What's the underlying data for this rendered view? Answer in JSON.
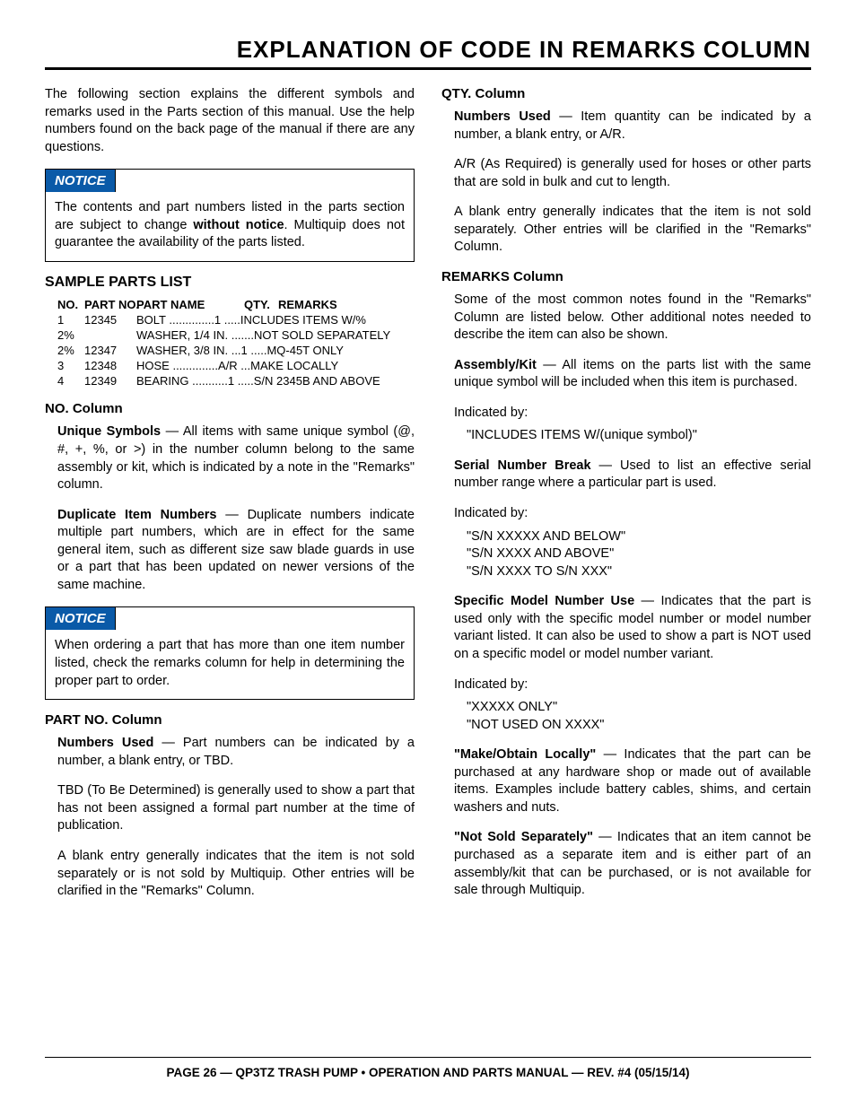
{
  "title": "EXPLANATION OF CODE IN REMARKS COLUMN",
  "intro": "The following section explains the different symbols and remarks used in the Parts section of this manual. Use the help numbers found on the back page of the manual if there are any questions.",
  "notice1": {
    "label": "NOTICE",
    "body_pre": "The contents and part numbers listed in the parts section are subject to change ",
    "body_bold": "without notice",
    "body_post": ". Multiquip does not guarantee the availability of the parts listed."
  },
  "sample_heading": "SAMPLE PARTS LIST",
  "table": {
    "headers": {
      "no": "NO.",
      "part": "PART NO.",
      "name": "PART NAME",
      "qty": "QTY.",
      "rem": "REMARKS"
    },
    "rows": [
      {
        "no": "1",
        "part": "12345",
        "name": "BOLT",
        "qty": "1",
        "rem": "INCLUDES ITEMS W/%"
      },
      {
        "no": "2%",
        "part": "",
        "name": "WASHER, 1/4 IN.",
        "qty": "",
        "rem": "NOT SOLD SEPARATELY"
      },
      {
        "no": "2%",
        "part": "12347",
        "name": "WASHER, 3/8 IN.",
        "qty": "1",
        "rem": "MQ-45T ONLY"
      },
      {
        "no": "3",
        "part": "12348",
        "name": "HOSE",
        "qty": "A/R",
        "rem": "MAKE LOCALLY"
      },
      {
        "no": "4",
        "part": "12349",
        "name": "BEARING",
        "qty": "1",
        "rem": "S/N 2345B AND ABOVE"
      }
    ]
  },
  "no_col": {
    "heading": "NO. Column",
    "p1_lead": "Unique Symbols",
    "p1": " — All items with same unique symbol (@, #, +, %, or >) in the number column belong to the same assembly or kit, which is indicated by a note in the \"Remarks\" column.",
    "p2_lead": "Duplicate Item Numbers",
    "p2": " — Duplicate numbers indicate multiple part numbers, which are in effect for the same general item, such as different size saw blade guards in use or a part that has been updated on newer versions of the same machine."
  },
  "notice2": {
    "label": "NOTICE",
    "body": "When ordering a part that has more than one item number listed, check the remarks column for help in determining the proper part to order."
  },
  "partno_col": {
    "heading": "PART NO. Column",
    "p1_lead": "Numbers Used",
    "p1": " — Part numbers can be indicated by a number, a blank entry, or TBD.",
    "p2": "TBD (To Be Determined) is generally used to show a part that has not been assigned a formal part number at the time of publication.",
    "p3": "A blank entry generally indicates that the item is not sold separately or is not sold by Multiquip. Other entries will be clarified in the \"Remarks\" Column."
  },
  "qty_col": {
    "heading": "QTY. Column",
    "p1_lead": "Numbers Used",
    "p1": " — Item quantity can be indicated by a number, a blank entry, or A/R.",
    "p2": "A/R (As Required) is generally used for hoses or other parts that are sold in bulk and cut to length.",
    "p3": "A blank entry generally indicates that the item is not sold separately. Other entries will be clarified in the \"Remarks\" Column."
  },
  "remarks_col": {
    "heading": "REMARKS Column",
    "intro": "Some of the most common notes found in the \"Remarks\" Column are listed below. Other additional notes needed to describe the item can also be shown.",
    "asm_lead": "Assembly/Kit",
    "asm": " — All items on the parts list with the same unique symbol will be included when this item is purchased.",
    "indby": "Indicated by:",
    "asm_quote": "\"INCLUDES ITEMS W/(unique symbol)\"",
    "snb_lead": "Serial Number Break",
    "snb": " — Used to list an effective serial number range where a particular part is used.",
    "snb_q1": "\"S/N XXXXX AND BELOW\"",
    "snb_q2": "\"S/N XXXX AND ABOVE\"",
    "snb_q3": "\"S/N XXXX TO S/N XXX\"",
    "smn_lead": "Specific Model Number Use",
    "smn": " — Indicates that the part is used only with the specific model number or model number variant listed. It can also be used to show a part is NOT used on a specific model or model number variant.",
    "smn_q1": "\"XXXXX ONLY\"",
    "smn_q2": "\"NOT USED ON XXXX\"",
    "mol_lead": "\"Make/Obtain Locally\"",
    "mol": " — Indicates that the part can be purchased at any hardware shop or made out of available items. Examples include battery cables, shims, and certain washers and nuts.",
    "nss_lead": "\"Not Sold Separately\"",
    "nss": " — Indicates that an item cannot be purchased as a separate item and is either part of an assembly/kit that can be purchased, or is not available for sale through Multiquip."
  },
  "footer": "PAGE 26 — QP3TZ TRASH PUMP • OPERATION AND PARTS MANUAL — REV. #4 (05/15/14)"
}
